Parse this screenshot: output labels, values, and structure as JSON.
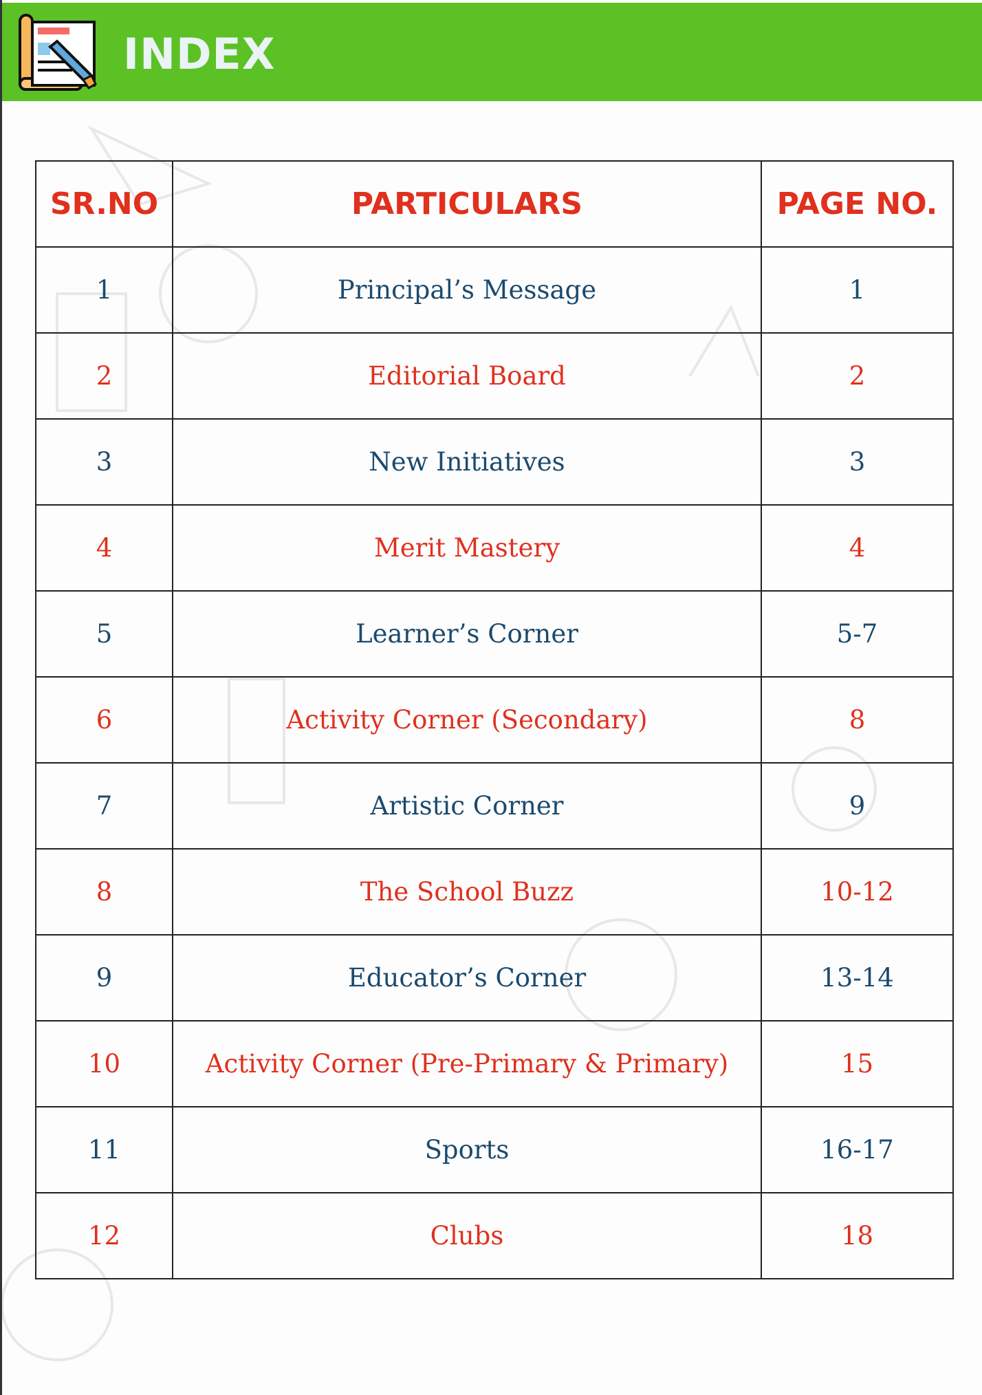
{
  "header": {
    "title": "INDEX",
    "icon": "document-pencil-icon",
    "background_color": "#5BC125"
  },
  "table": {
    "columns": [
      "SR.NO",
      "PARTICULARS",
      "PAGE NO."
    ],
    "rows": [
      {
        "sr": "1",
        "particular": "Principal’s Message",
        "page": "1"
      },
      {
        "sr": "2",
        "particular": "Editorial Board",
        "page": "2"
      },
      {
        "sr": "3",
        "particular": "New Initiatives",
        "page": "3"
      },
      {
        "sr": "4",
        "particular": "Merit Mastery",
        "page": "4"
      },
      {
        "sr": "5",
        "particular": "Learner’s Corner",
        "page": "5-7"
      },
      {
        "sr": "6",
        "particular": "Activity Corner (Secondary)",
        "page": "8"
      },
      {
        "sr": "7",
        "particular": "Artistic Corner",
        "page": "9"
      },
      {
        "sr": "8",
        "particular": "The School Buzz",
        "page": "10-12"
      },
      {
        "sr": "9",
        "particular": "Educator’s Corner",
        "page": "13-14"
      },
      {
        "sr": "10",
        "particular": "Activity Corner (Pre-Primary & Primary)",
        "page": "15"
      },
      {
        "sr": "11",
        "particular": "Sports",
        "page": "16-17"
      },
      {
        "sr": "12",
        "particular": "Clubs",
        "page": "18"
      }
    ]
  },
  "colors": {
    "heading_red": "#E0301E",
    "row_blue": "#1B4A6E",
    "row_red": "#E0301E"
  }
}
